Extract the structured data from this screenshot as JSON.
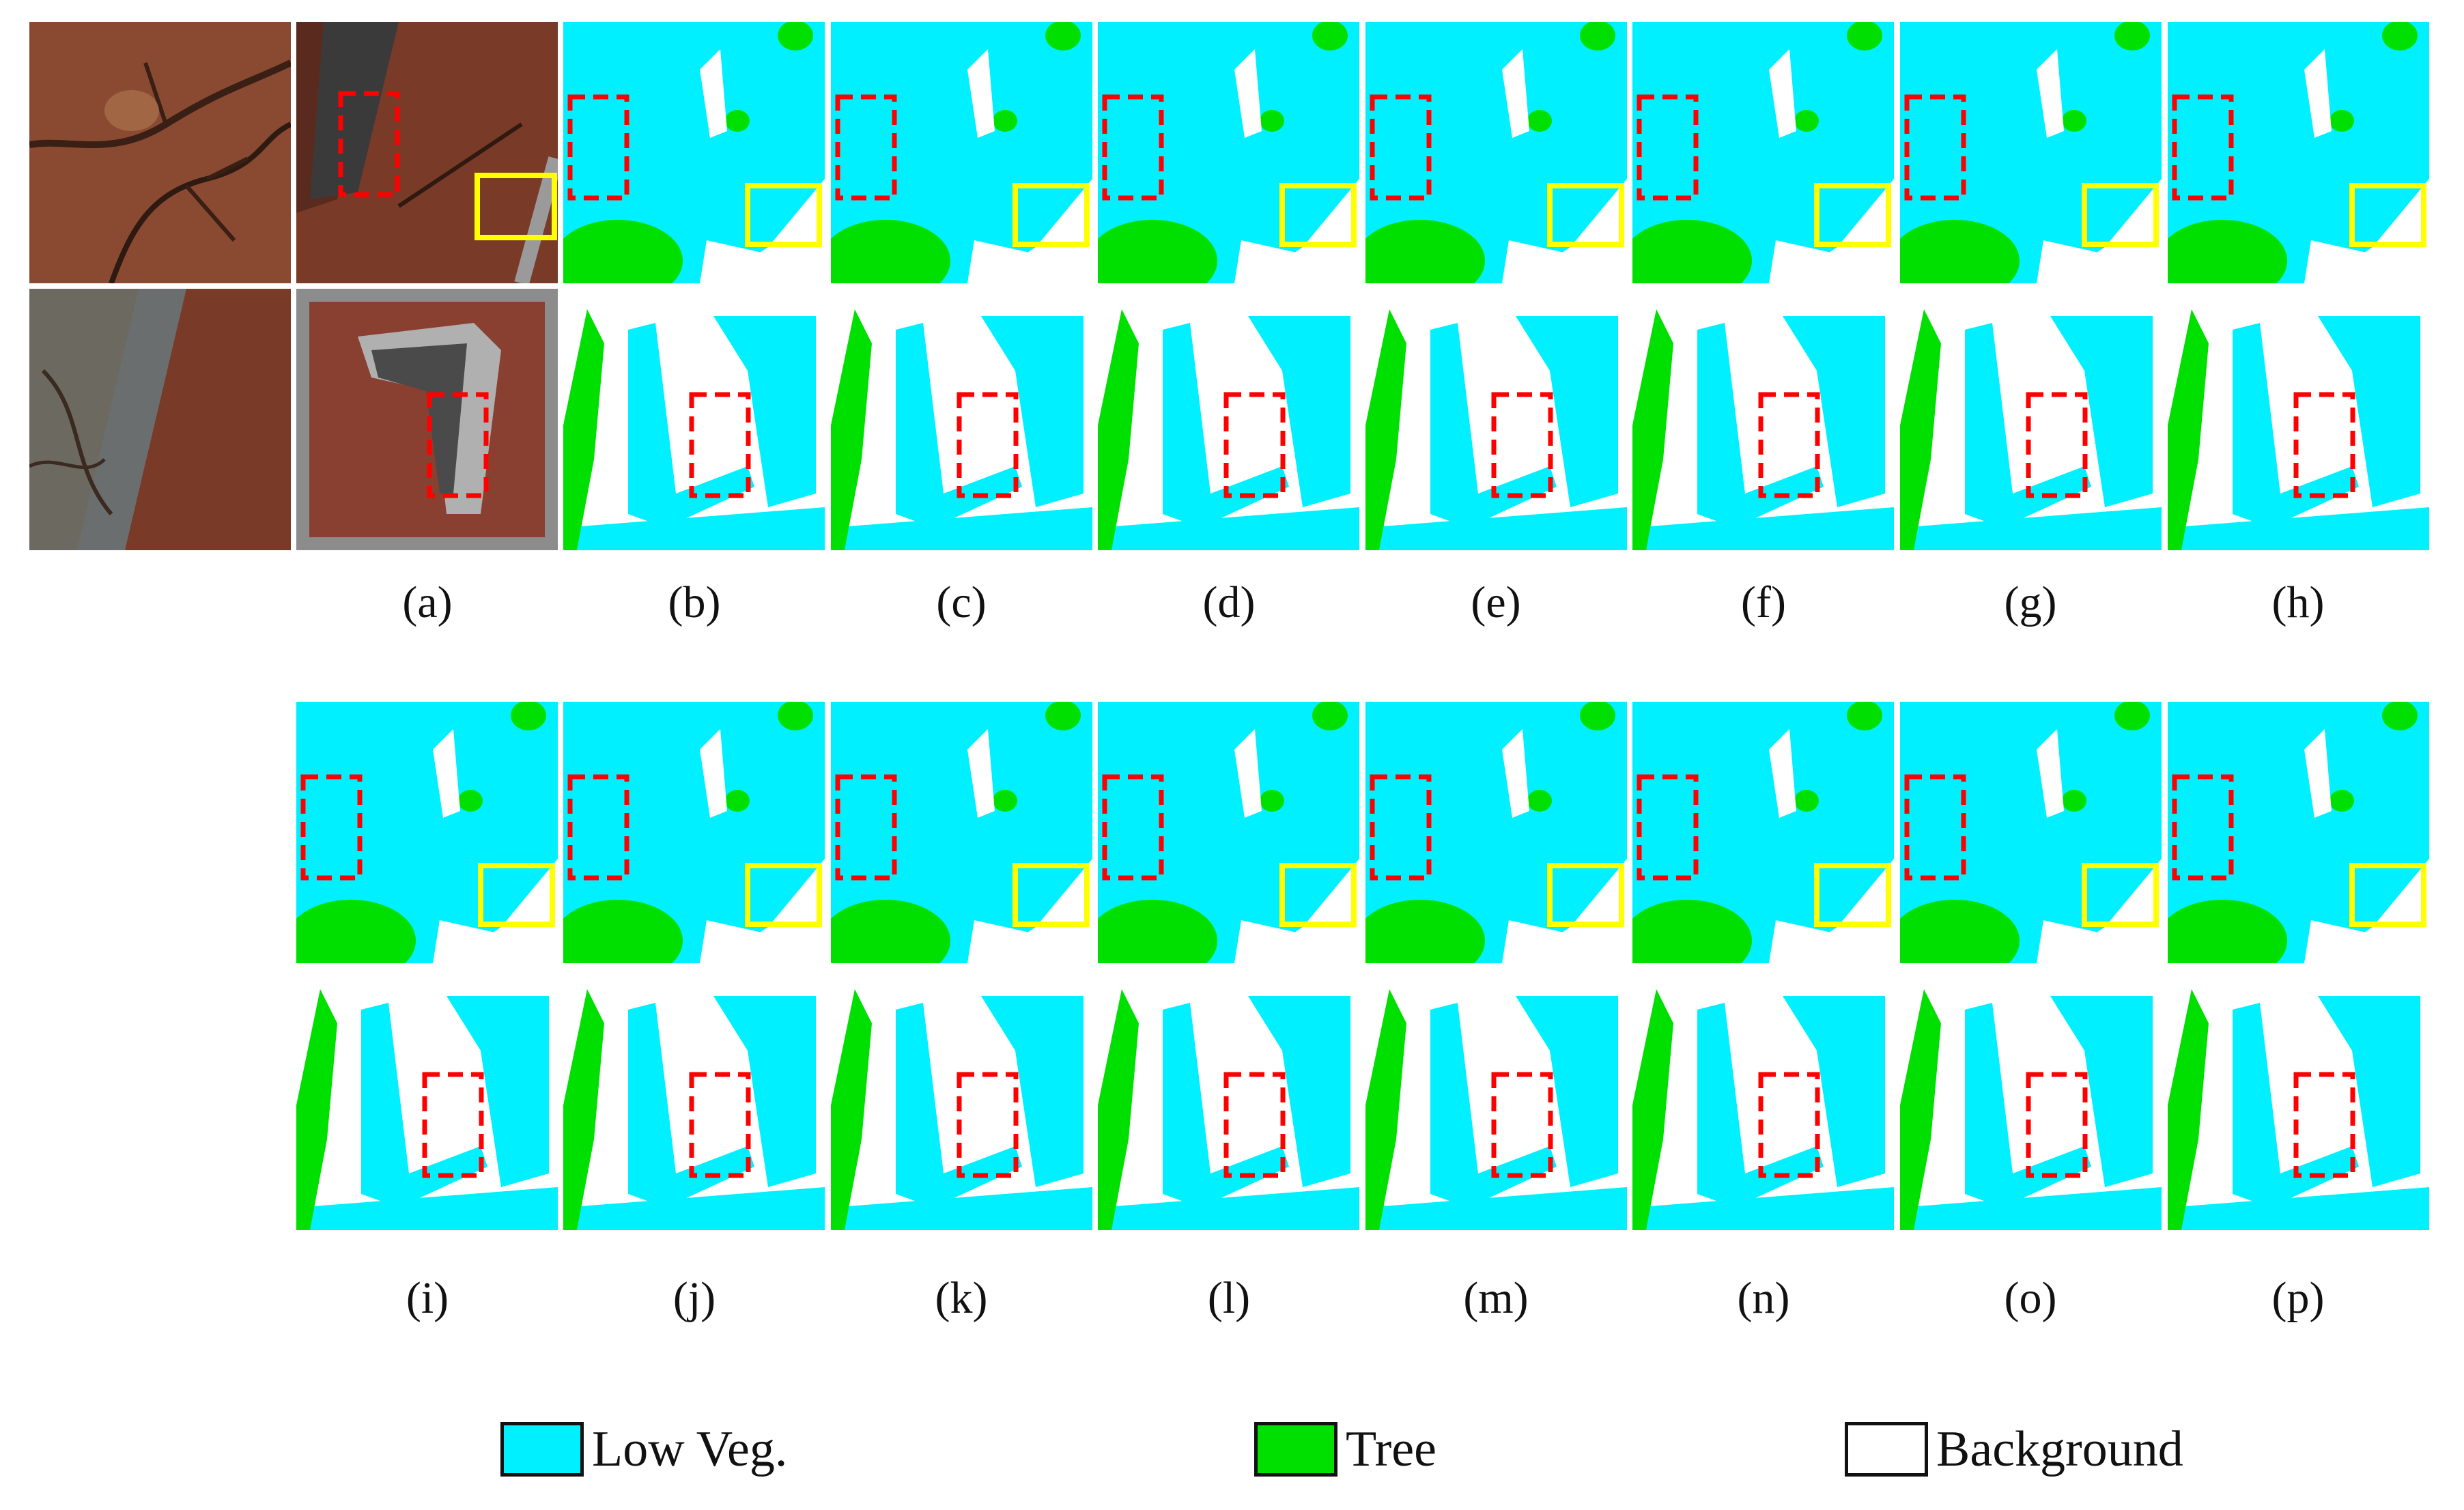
{
  "figure": {
    "labels": [
      "(a)",
      "(b)",
      "(c)",
      "(d)",
      "(e)",
      "(f)",
      "(g)",
      "(h)",
      "(i)",
      "(j)",
      "(k)",
      "(l)",
      "(m)",
      "(n)",
      "(o)",
      "(p)"
    ]
  },
  "legend": [
    {
      "label": "Low Veg.",
      "color": "#00f0ff"
    },
    {
      "label": "Tree",
      "color": "#00e000"
    },
    {
      "label": "Background",
      "color": "#ffffff"
    }
  ],
  "colors": {
    "low_veg": "#00f0ff",
    "tree": "#00e000",
    "background": "#ffffff",
    "red_box": "#ff0000",
    "yellow_box": "#ffff00"
  }
}
